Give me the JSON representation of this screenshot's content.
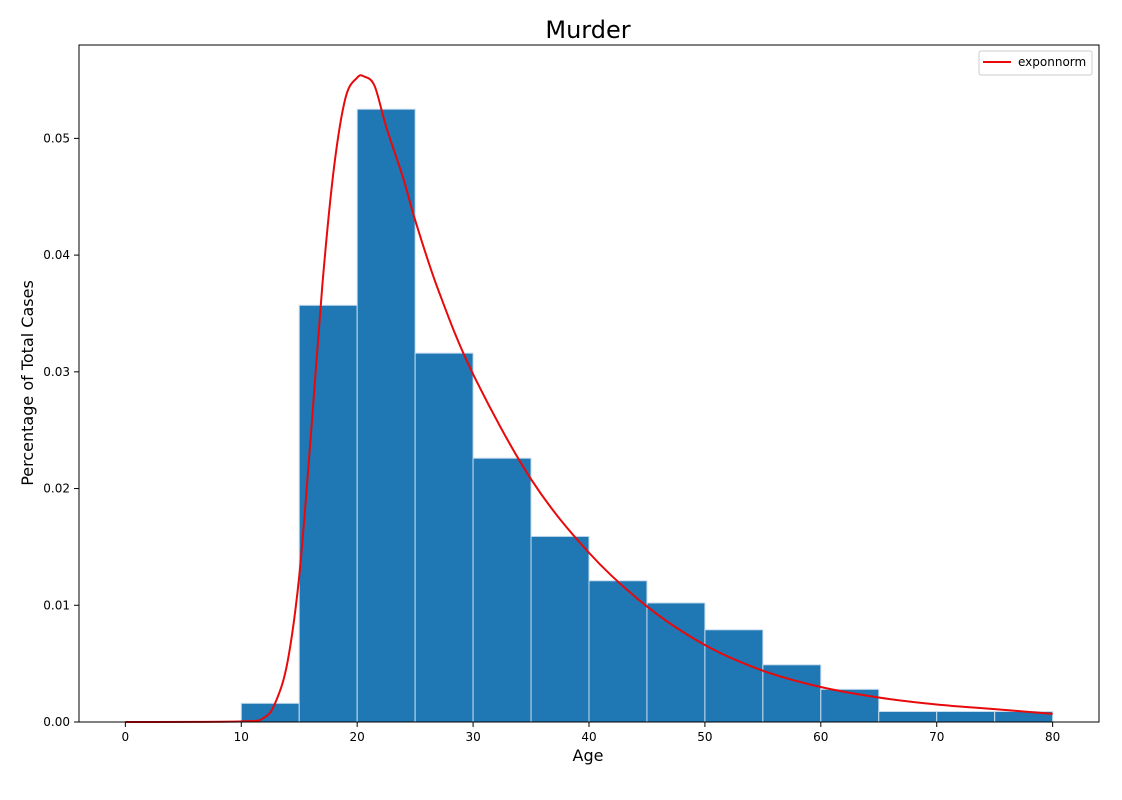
{
  "chart_data": {
    "type": "bar",
    "title": "Murder",
    "xlabel": "Age",
    "ylabel": "Percentage of Total Cases",
    "xlim": [
      -4,
      84
    ],
    "ylim": [
      0,
      0.058
    ],
    "xticks": [
      0,
      10,
      20,
      30,
      40,
      50,
      60,
      70,
      80
    ],
    "yticks": [
      0.0,
      0.01,
      0.02,
      0.03,
      0.04,
      0.05
    ],
    "ytick_labels": [
      "0.00",
      "0.01",
      "0.02",
      "0.03",
      "0.04",
      "0.05"
    ],
    "bin_edges": [
      10,
      15,
      20,
      25,
      30,
      35,
      40,
      45,
      50,
      55,
      60,
      65,
      70,
      75,
      80
    ],
    "values": [
      0.0016,
      0.0357,
      0.0525,
      0.0316,
      0.0226,
      0.0159,
      0.0121,
      0.0102,
      0.0079,
      0.0049,
      0.0028,
      0.0009,
      0.0009,
      0.0009
    ],
    "bar_color": "#1f77b4",
    "grid": false,
    "legend_position": "top-right",
    "series": [
      {
        "name": "exponnorm",
        "type": "line",
        "color": "#e8090b",
        "x": [
          0,
          10,
          12,
          13,
          14,
          15,
          16,
          17,
          18,
          19,
          20,
          20.6,
          21.5,
          22.5,
          24,
          25,
          27,
          30,
          35,
          40,
          45,
          50,
          55,
          60,
          65,
          70,
          75,
          80
        ],
        "y": [
          0.0,
          5e-05,
          0.0004,
          0.0018,
          0.0052,
          0.0125,
          0.0245,
          0.0375,
          0.0475,
          0.0535,
          0.0552,
          0.0553,
          0.0545,
          0.051,
          0.0465,
          0.043,
          0.037,
          0.0298,
          0.0208,
          0.0145,
          0.0099,
          0.0066,
          0.0044,
          0.003,
          0.0021,
          0.0015,
          0.0011,
          0.0007
        ]
      }
    ]
  }
}
